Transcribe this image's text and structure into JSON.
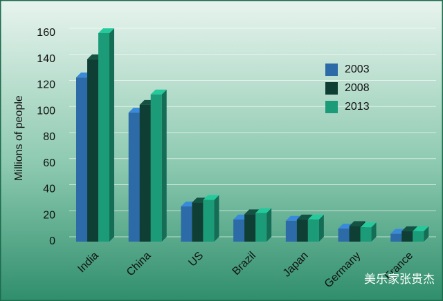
{
  "chart_data": {
    "type": "bar3d",
    "y_label": "Millions of people",
    "categories": [
      "India",
      "China",
      "US",
      "Brazil",
      "Japan",
      "Germany",
      "France"
    ],
    "series": [
      {
        "name": "2003",
        "color": "#2c6aa8",
        "values": [
          126,
          99,
          27,
          17,
          16,
          10,
          6
        ]
      },
      {
        "name": "2008",
        "color": "#0f3f34",
        "values": [
          140,
          105,
          30,
          21,
          17,
          12,
          8
        ]
      },
      {
        "name": "2013",
        "color": "#1c9b78",
        "values": [
          160,
          113,
          32,
          22,
          17,
          11,
          8
        ]
      }
    ],
    "ylim": [
      0,
      160
    ],
    "yticks": [
      0,
      20,
      40,
      60,
      80,
      100,
      120,
      140,
      160
    ],
    "grid": true,
    "legend": "upper right",
    "watermark": "美乐家张贵杰"
  }
}
